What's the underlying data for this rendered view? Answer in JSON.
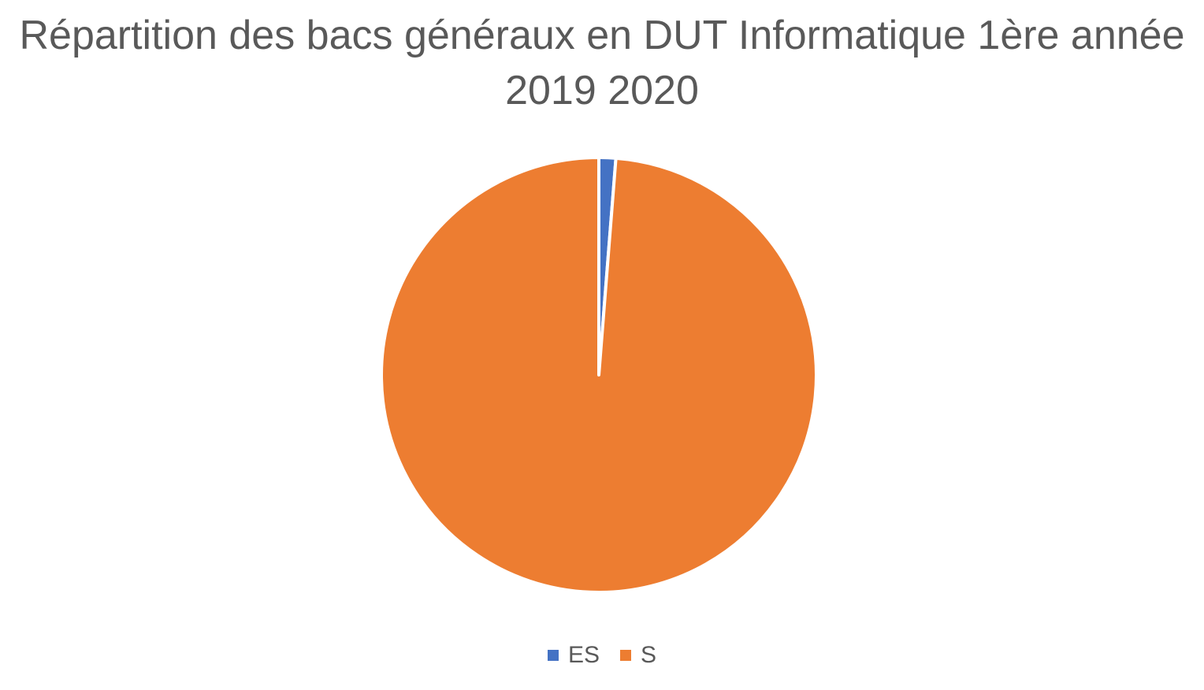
{
  "chart_data": {
    "type": "pie",
    "title_lines": [
      "Répartition des bacs généraux en DUT Informatique 1ère année",
      "2019 2020"
    ],
    "slices": [
      {
        "label": "ES",
        "value": 1,
        "color": "#4472C4"
      },
      {
        "label": "S",
        "value": 79,
        "color": "#ED7D31"
      }
    ],
    "legend": {
      "position": "bottom"
    },
    "start_angle_deg": 0,
    "direction": "clockwise"
  }
}
